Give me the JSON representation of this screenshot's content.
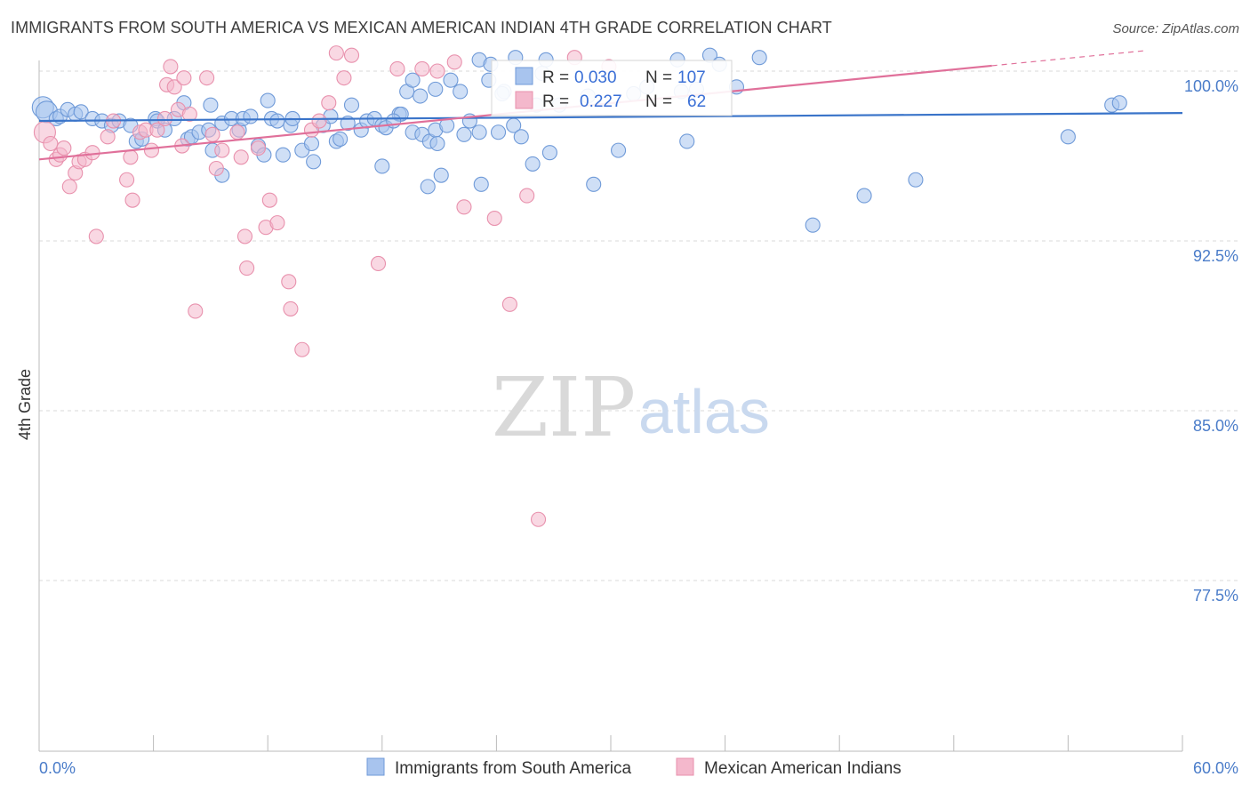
{
  "header": {
    "title": "IMMIGRANTS FROM SOUTH AMERICA VS MEXICAN AMERICAN INDIAN 4TH GRADE CORRELATION CHART",
    "source": "Source: ZipAtlas.com"
  },
  "watermark": {
    "zip": "ZIP",
    "atlas": "atlas"
  },
  "stats": {
    "r_label": "R =",
    "n_label": "N =",
    "rows": [
      {
        "r": "0.030",
        "n": "107",
        "color": "#a8c4ee"
      },
      {
        "r": "0.227",
        "n": "62",
        "color": "#f4b8cc"
      }
    ]
  },
  "colors": {
    "blue_fill": "#a8c4ee",
    "blue_stroke": "#6f9ad8",
    "blue_line": "#3a74c9",
    "pink_fill": "#f4b8cc",
    "pink_stroke": "#e891ad",
    "pink_line": "#e0709a",
    "grid": "#d9d9d9",
    "tick_text": "#4a7cc9"
  },
  "chart_data": {
    "type": "scatter",
    "title": "IMMIGRANTS FROM SOUTH AMERICA VS MEXICAN AMERICAN INDIAN 4TH GRADE CORRELATION CHART",
    "xlabel": "",
    "ylabel": "4th Grade",
    "xlim": [
      0,
      60
    ],
    "ylim": [
      70.0,
      100.8
    ],
    "x_tick_labels": [
      "0.0%",
      "60.0%"
    ],
    "y_ticks": [
      100.0,
      92.5,
      85.0,
      77.5
    ],
    "y_tick_labels": [
      "100.0%",
      "92.5%",
      "85.0%",
      "77.5%"
    ],
    "grid": true,
    "legend_position": "bottom",
    "series": [
      {
        "name": "Immigrants from South America",
        "color": "#a8c4ee",
        "trend": {
          "x": [
            0,
            60
          ],
          "y": [
            97.8,
            98.15
          ]
        },
        "points": [
          [
            0.2,
            98.4
          ],
          [
            0.4,
            98.2
          ],
          [
            0.9,
            97.9
          ],
          [
            1.1,
            98.0
          ],
          [
            1.5,
            98.3
          ],
          [
            1.9,
            98.1
          ],
          [
            2.2,
            98.2
          ],
          [
            2.8,
            97.9
          ],
          [
            3.3,
            97.8
          ],
          [
            3.8,
            97.6
          ],
          [
            4.2,
            97.8
          ],
          [
            4.8,
            97.6
          ],
          [
            5.1,
            96.9
          ],
          [
            5.4,
            97.0
          ],
          [
            6.1,
            97.9
          ],
          [
            6.2,
            97.8
          ],
          [
            6.6,
            97.4
          ],
          [
            7.1,
            97.9
          ],
          [
            7.6,
            98.6
          ],
          [
            7.8,
            97.0
          ],
          [
            8.0,
            97.1
          ],
          [
            8.4,
            97.3
          ],
          [
            8.9,
            97.4
          ],
          [
            9.1,
            96.5
          ],
          [
            9.6,
            97.7
          ],
          [
            10.1,
            97.9
          ],
          [
            10.5,
            97.4
          ],
          [
            10.7,
            97.9
          ],
          [
            11.1,
            98.0
          ],
          [
            11.5,
            96.7
          ],
          [
            11.8,
            96.3
          ],
          [
            12.0,
            98.7
          ],
          [
            12.2,
            97.9
          ],
          [
            12.5,
            97.8
          ],
          [
            12.8,
            96.3
          ],
          [
            13.2,
            97.6
          ],
          [
            13.3,
            97.9
          ],
          [
            13.8,
            96.5
          ],
          [
            14.3,
            96.8
          ],
          [
            14.4,
            96.0
          ],
          [
            14.9,
            97.6
          ],
          [
            15.3,
            98.0
          ],
          [
            15.6,
            96.9
          ],
          [
            15.8,
            97.0
          ],
          [
            16.2,
            97.7
          ],
          [
            16.4,
            98.5
          ],
          [
            16.9,
            97.4
          ],
          [
            17.2,
            97.8
          ],
          [
            17.6,
            97.9
          ],
          [
            18.0,
            97.6
          ],
          [
            18.0,
            95.8
          ],
          [
            18.2,
            97.5
          ],
          [
            18.9,
            98.1
          ],
          [
            19.3,
            99.1
          ],
          [
            19.6,
            97.3
          ],
          [
            20.1,
            97.2
          ],
          [
            20.5,
            96.9
          ],
          [
            20.8,
            97.4
          ],
          [
            20.9,
            96.8
          ],
          [
            21.4,
            97.6
          ],
          [
            22.1,
            99.1
          ],
          [
            22.3,
            97.2
          ],
          [
            22.6,
            97.8
          ],
          [
            23.1,
            97.3
          ],
          [
            24.4,
            99.1
          ],
          [
            24.9,
            97.6
          ],
          [
            25.3,
            97.1
          ],
          [
            25.9,
            95.9
          ],
          [
            26.1,
            98.5
          ],
          [
            26.8,
            96.4
          ],
          [
            27.3,
            98.5
          ],
          [
            28.8,
            98.9
          ],
          [
            30.4,
            96.5
          ],
          [
            31.2,
            99.0
          ],
          [
            31.9,
            99.3
          ],
          [
            33.5,
            100.5
          ],
          [
            33.7,
            99.1
          ],
          [
            34.0,
            96.9
          ],
          [
            34.5,
            99.2
          ],
          [
            35.2,
            100.7
          ],
          [
            35.7,
            100.3
          ],
          [
            36.6,
            99.3
          ],
          [
            37.8,
            100.6
          ],
          [
            19.6,
            99.6
          ],
          [
            20.0,
            98.9
          ],
          [
            20.8,
            99.2
          ],
          [
            21.6,
            99.6
          ],
          [
            23.6,
            99.6
          ],
          [
            24.3,
            99.0
          ],
          [
            23.1,
            100.5
          ],
          [
            23.7,
            100.3
          ],
          [
            25.0,
            100.6
          ],
          [
            26.4,
            99.9
          ],
          [
            26.6,
            100.5
          ],
          [
            19.0,
            98.1
          ],
          [
            9.6,
            95.4
          ],
          [
            21.1,
            95.4
          ],
          [
            23.2,
            95.0
          ],
          [
            20.4,
            94.9
          ],
          [
            24.1,
            97.3
          ],
          [
            29.1,
            95.0
          ],
          [
            40.6,
            93.2
          ],
          [
            43.3,
            94.5
          ],
          [
            46.0,
            95.2
          ],
          [
            54.0,
            97.1
          ],
          [
            56.3,
            98.5
          ],
          [
            56.7,
            98.6
          ],
          [
            9.0,
            98.5
          ],
          [
            18.6,
            97.8
          ]
        ]
      },
      {
        "name": "Mexican American Indians",
        "color": "#f4b8cc",
        "trend": {
          "x": [
            0,
            58
          ],
          "y": [
            96.1,
            100.9
          ]
        },
        "points": [
          [
            0.3,
            97.3
          ],
          [
            0.6,
            96.8
          ],
          [
            0.9,
            96.1
          ],
          [
            1.1,
            96.3
          ],
          [
            1.3,
            96.6
          ],
          [
            1.6,
            94.9
          ],
          [
            1.9,
            95.5
          ],
          [
            2.1,
            96.0
          ],
          [
            2.4,
            96.1
          ],
          [
            2.8,
            96.4
          ],
          [
            3.0,
            92.7
          ],
          [
            3.6,
            97.1
          ],
          [
            3.9,
            97.8
          ],
          [
            4.6,
            95.2
          ],
          [
            4.8,
            96.2
          ],
          [
            4.9,
            94.3
          ],
          [
            5.3,
            97.3
          ],
          [
            5.6,
            97.4
          ],
          [
            5.9,
            96.5
          ],
          [
            6.2,
            97.4
          ],
          [
            6.6,
            97.9
          ],
          [
            6.7,
            99.4
          ],
          [
            6.9,
            100.2
          ],
          [
            7.1,
            99.3
          ],
          [
            7.3,
            98.3
          ],
          [
            7.5,
            96.7
          ],
          [
            7.6,
            99.7
          ],
          [
            7.9,
            98.1
          ],
          [
            8.2,
            89.4
          ],
          [
            8.8,
            99.7
          ],
          [
            9.1,
            97.2
          ],
          [
            9.3,
            95.7
          ],
          [
            9.6,
            96.5
          ],
          [
            10.4,
            97.3
          ],
          [
            10.6,
            96.2
          ],
          [
            10.8,
            92.7
          ],
          [
            10.9,
            91.3
          ],
          [
            11.5,
            96.6
          ],
          [
            11.9,
            93.1
          ],
          [
            12.1,
            94.3
          ],
          [
            12.5,
            93.3
          ],
          [
            13.1,
            90.7
          ],
          [
            13.2,
            89.5
          ],
          [
            13.8,
            87.7
          ],
          [
            14.3,
            97.4
          ],
          [
            14.7,
            97.8
          ],
          [
            15.2,
            98.6
          ],
          [
            15.6,
            100.8
          ],
          [
            16.0,
            99.7
          ],
          [
            16.4,
            100.7
          ],
          [
            17.8,
            91.5
          ],
          [
            18.8,
            100.1
          ],
          [
            20.1,
            100.1
          ],
          [
            20.9,
            100.0
          ],
          [
            21.8,
            100.4
          ],
          [
            22.3,
            94.0
          ],
          [
            23.9,
            93.5
          ],
          [
            24.7,
            89.7
          ],
          [
            25.6,
            94.5
          ],
          [
            26.2,
            80.2
          ],
          [
            28.1,
            100.6
          ],
          [
            29.9,
            100.2
          ]
        ]
      }
    ]
  },
  "legend": {
    "items": [
      {
        "label": "Immigrants from South America",
        "color": "#a8c4ee"
      },
      {
        "label": "Mexican American Indians",
        "color": "#f4b8cc"
      }
    ]
  }
}
